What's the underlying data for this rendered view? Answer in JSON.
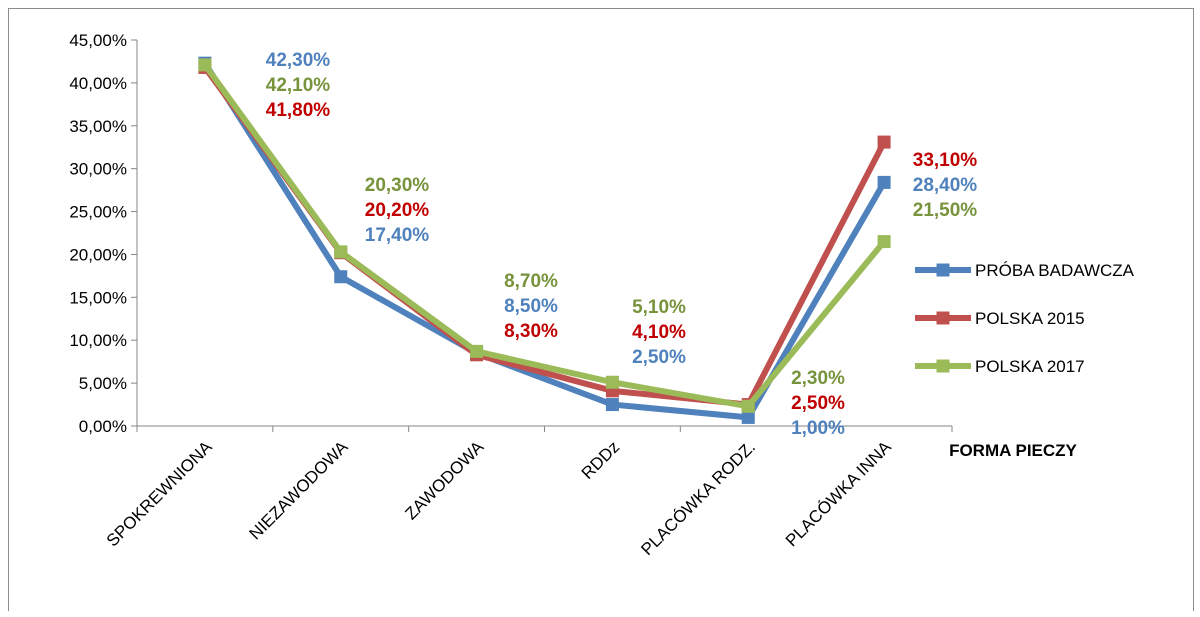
{
  "chart_data": {
    "type": "line",
    "title": "",
    "xlabel": "FORMA PIECZY",
    "ylabel": "",
    "ylim": [
      0,
      45
    ],
    "yticks": [
      "0,00%",
      "5,00%",
      "10,00%",
      "15,00%",
      "20,00%",
      "25,00%",
      "30,00%",
      "35,00%",
      "40,00%",
      "45,00%"
    ],
    "categories": [
      "SPOKREWNIONA",
      "NIEZAWODOWA",
      "ZAWODOWA",
      "RDDz",
      "PLACÓWKA RODZ.",
      "PLACÓWKA INNA"
    ],
    "legend_position": "right",
    "series": [
      {
        "name": "PRÓBA BADAWCZA",
        "color": "#4f81bd",
        "values": [
          42.3,
          17.4,
          8.5,
          2.5,
          1.0,
          28.4
        ],
        "labels": [
          "42,30%",
          "17,40%",
          "8,50%",
          "2,50%",
          "1,00%",
          "28,40%"
        ]
      },
      {
        "name": "POLSKA 2015",
        "color": "#c0504d",
        "label_color": "#c00000",
        "values": [
          41.8,
          20.2,
          8.3,
          4.1,
          2.5,
          33.1
        ],
        "labels": [
          "41,80%",
          "20,20%",
          "8,30%",
          "4,10%",
          "2,50%",
          "33,10%"
        ]
      },
      {
        "name": "POLSKA 2017",
        "color": "#9bbb59",
        "label_color": "#77933c",
        "values": [
          42.1,
          20.3,
          8.7,
          5.1,
          2.3,
          21.5
        ],
        "labels": [
          "42,10%",
          "20,30%",
          "8,70%",
          "5,10%",
          "2,30%",
          "21,50%"
        ]
      }
    ]
  }
}
